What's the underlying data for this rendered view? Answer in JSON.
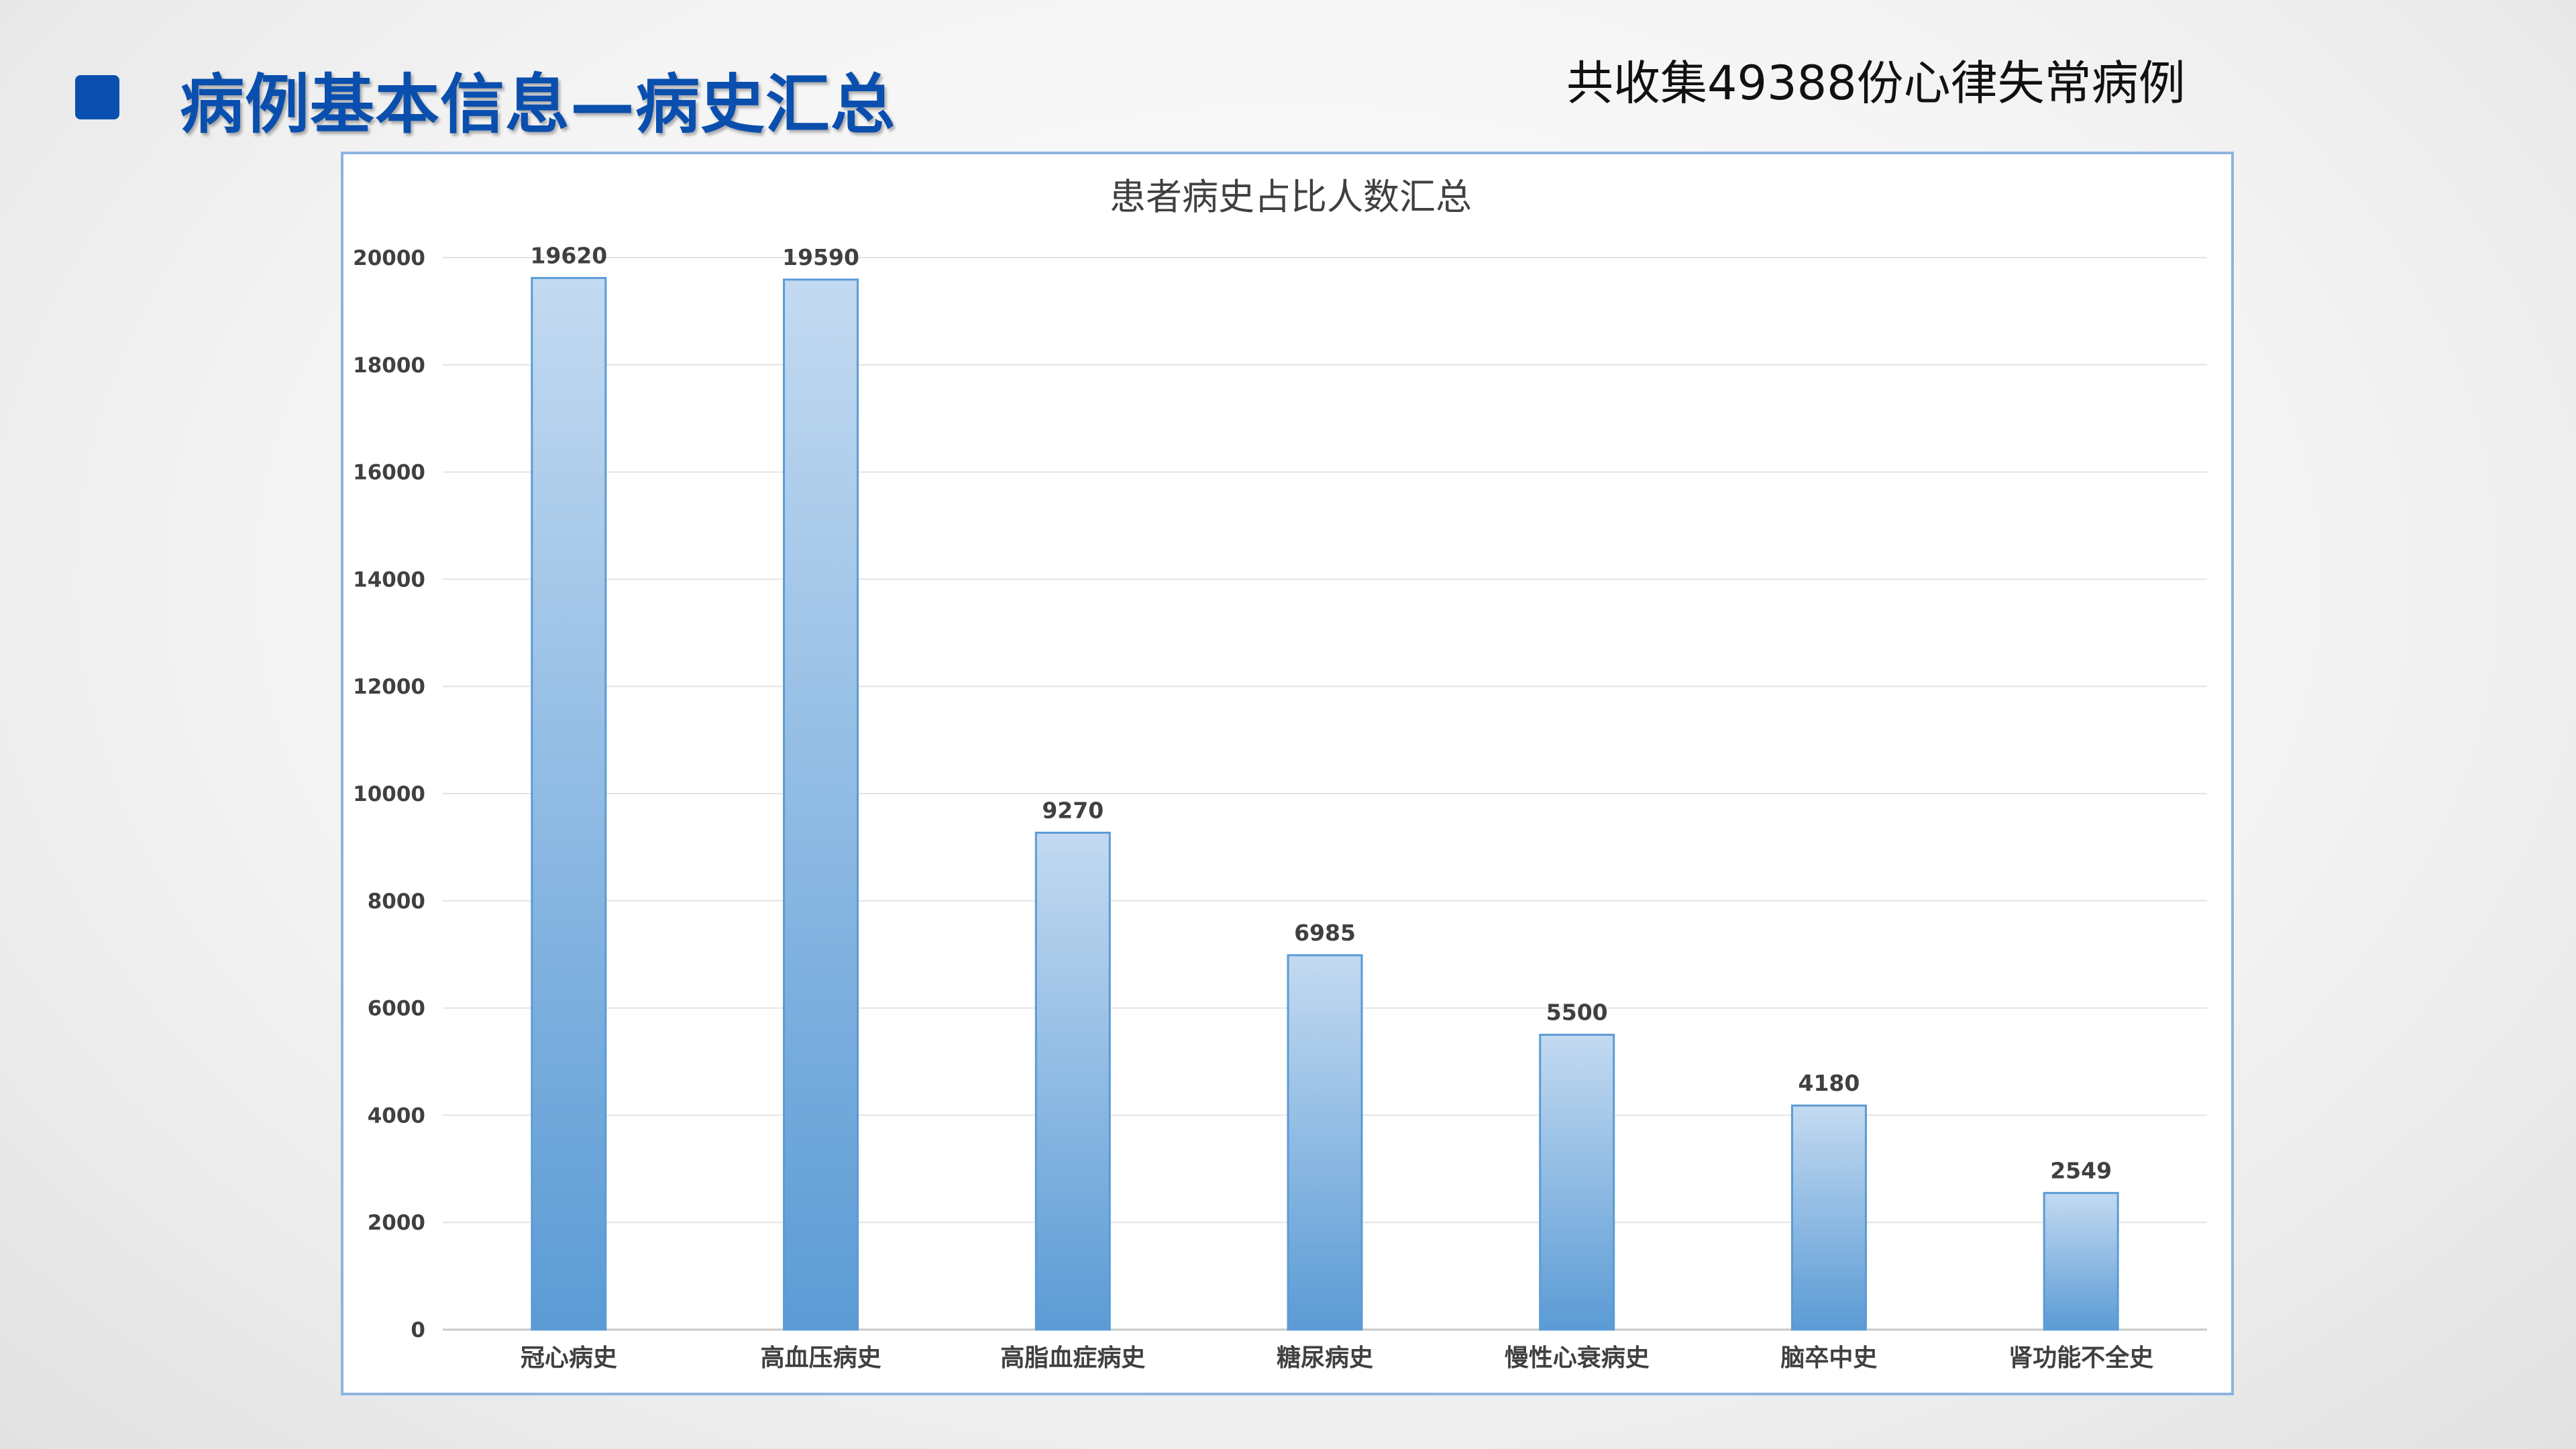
{
  "slide": {
    "title": "病例基本信息—病史汇总",
    "note": "共收集49388份心律失常病例"
  },
  "colors": {
    "accent": "#0a4fae",
    "bar_top": "#c3daf1",
    "bar_bottom": "#5b9bd5",
    "frame": "#8eb4de"
  },
  "chart_data": {
    "type": "bar",
    "title": "患者病史占比人数汇总",
    "categories": [
      "冠心病史",
      "高血压病史",
      "高脂血症病史",
      "糖尿病史",
      "慢性心衰病史",
      "脑卒中史",
      "肾功能不全史"
    ],
    "values": [
      19620,
      19590,
      9270,
      6985,
      5500,
      4180,
      2549
    ],
    "xlabel": "",
    "ylabel": "",
    "ylim": [
      0,
      20000
    ],
    "yticks": [
      0,
      2000,
      4000,
      6000,
      8000,
      10000,
      12000,
      14000,
      16000,
      18000,
      20000
    ],
    "grid": true,
    "data_labels": true,
    "legend": "none"
  }
}
